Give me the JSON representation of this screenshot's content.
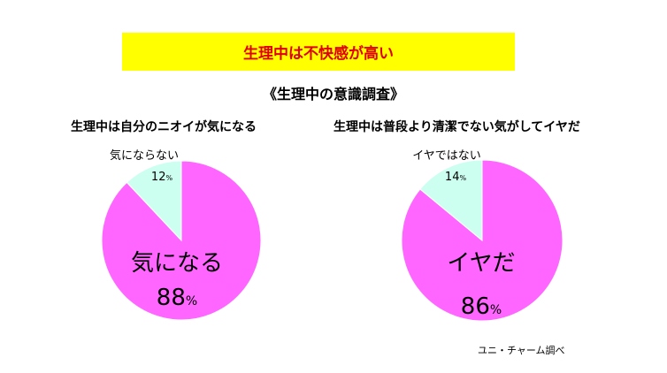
{
  "headline": "生理中は不快感が高い",
  "survey_title": "《生理中の意識調査》",
  "source": "ユニ・チャーム調べ",
  "colors": {
    "banner_bg": "#ffff00",
    "headline_text": "#e00000",
    "major_slice": "#ff66ff",
    "minor_slice": "#ccfff0"
  },
  "chart_data": [
    {
      "type": "pie",
      "title": "生理中は自分のニオイが気になる",
      "slices": [
        {
          "label": "気になる",
          "value": 88,
          "unit": "%"
        },
        {
          "label": "気にならない",
          "value": 12,
          "unit": "%"
        }
      ]
    },
    {
      "type": "pie",
      "title": "生理中は普段より清潔でない気がしてイヤだ",
      "slices": [
        {
          "label": "イヤだ",
          "value": 86,
          "unit": "%"
        },
        {
          "label": "イヤではない",
          "value": 14,
          "unit": "%"
        }
      ]
    }
  ]
}
